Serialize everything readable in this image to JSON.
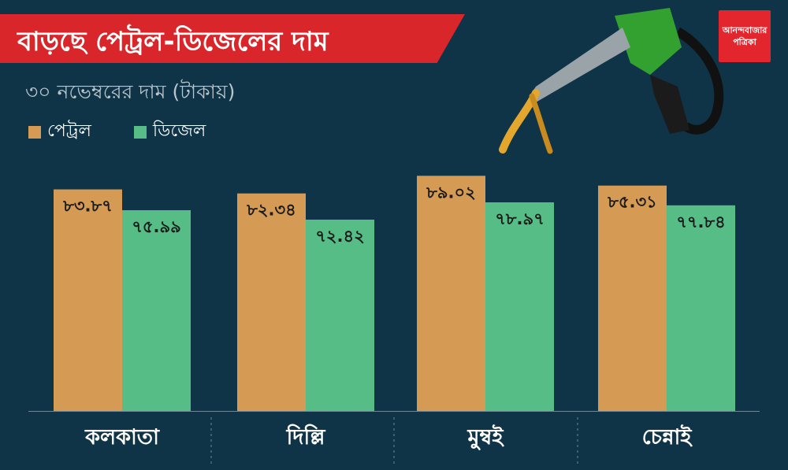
{
  "header": {
    "title": "বাড়ছে পেট্রল-ডিজেলের দাম",
    "subtitle": "৩০ নভেম্বরের দাম (টাকায়)"
  },
  "logo": {
    "line1": "আনন্দবাজার",
    "line2": "পত্রিকা"
  },
  "illustration": "fuel-nozzle-icon",
  "colors": {
    "background": "#0f3447",
    "banner": "#d9262b",
    "petrol": "#d59a54",
    "diesel": "#55bd85",
    "label": "#ffffff",
    "value": "#1a1a1a"
  },
  "chart_data": {
    "type": "bar",
    "categories": [
      "কলকাতা",
      "দিল্লি",
      "মুম্বই",
      "চেন্নাই"
    ],
    "series": [
      {
        "name": "পেট্রল",
        "values": [
          83.87,
          82.34,
          89.02,
          85.31
        ],
        "labels": [
          "৮৩.৮৭",
          "৮২.৩৪",
          "৮৯.০২",
          "৮৫.৩১"
        ]
      },
      {
        "name": "ডিজেল",
        "values": [
          75.99,
          72.42,
          78.97,
          77.84
        ],
        "labels": [
          "৭৫.৯৯",
          "৭২.৪২",
          "৭৮.৯৭",
          "৭৭.৮৪"
        ]
      }
    ],
    "ylim": [
      0,
      90
    ],
    "title": "বাড়ছে পেট্রল-ডিজেলের দাম",
    "xlabel": "",
    "ylabel": "",
    "grid": false,
    "legend": "top-left"
  }
}
